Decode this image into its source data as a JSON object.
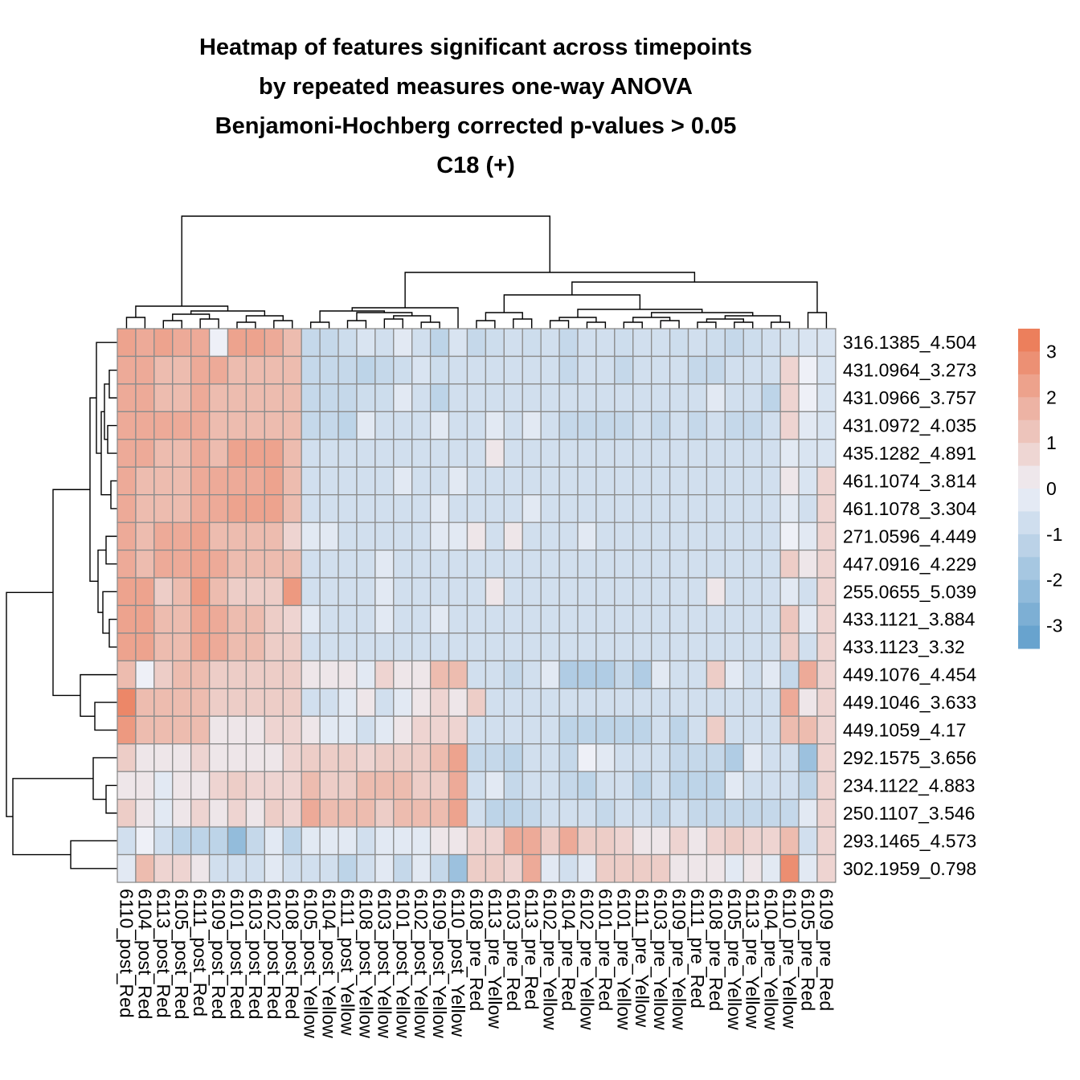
{
  "chart_data": {
    "type": "heatmap",
    "title_lines": [
      "Heatmap of features significant across timepoints",
      "by repeated measures one-way ANOVA",
      "Benjamoni-Hochberg corrected p-values > 0.05",
      "C18 (+)"
    ],
    "rows": [
      "316.1385_4.504",
      "431.0964_3.273",
      "431.0966_3.757",
      "431.0972_4.035",
      "435.1282_4.891",
      "461.1074_3.814",
      "461.1078_3.304",
      "271.0596_4.449",
      "447.0916_4.229",
      "255.0655_5.039",
      "433.1121_3.884",
      "433.1123_3.32",
      "449.1076_4.454",
      "449.1046_3.633",
      "449.1059_4.17",
      "292.1575_3.656",
      "234.1122_4.883",
      "250.1107_3.546",
      "293.1465_4.573",
      "302.1959_0.798"
    ],
    "columns": [
      "6110_post_Red",
      "6104_post_Red",
      "6113_post_Red",
      "6105_post_Red",
      "6111_post_Red",
      "6109_post_Red",
      "6101_post_Red",
      "6103_post_Red",
      "6102_post_Red",
      "6108_post_Red",
      "6105_post_Yellow",
      "6104_post_Yellow",
      "6111_post_Yellow",
      "6108_post_Yellow",
      "6103_post_Yellow",
      "6101_post_Yellow",
      "6102_post_Yellow",
      "6109_post_Yellow",
      "6110_post_Yellow",
      "6108_pre_Red",
      "6113_pre_Yellow",
      "6103_pre_Red",
      "6113_pre_Red",
      "6102_pre_Yellow",
      "6104_pre_Red",
      "6102_pre_Yellow",
      "6101_pre_Red",
      "6101_pre_Yellow",
      "6111_pre_Yellow",
      "6103_pre_Yellow",
      "6109_pre_Yellow",
      "6111_pre_Red",
      "6108_pre_Red",
      "6105_pre_Yellow",
      "6113_pre_Yellow",
      "6104_pre_Yellow",
      "6110_pre_Yellow",
      "6105_pre_Red",
      "6109_pre_Red"
    ],
    "values": [
      [
        2.2,
        2.0,
        2.2,
        2.0,
        2.0,
        0.0,
        2.2,
        2.2,
        2.0,
        1.5,
        -1.0,
        -1.0,
        -0.8,
        -0.5,
        -0.7,
        -0.3,
        -0.7,
        -1.2,
        -0.5,
        -1.0,
        -0.8,
        -0.7,
        -0.8,
        -0.7,
        -1.0,
        -0.7,
        -0.7,
        -0.8,
        -0.7,
        -0.7,
        -0.8,
        -0.7,
        -0.8,
        -1.0,
        -0.8,
        -0.7,
        -0.6,
        -0.5,
        -0.5
      ],
      [
        2.0,
        2.0,
        1.5,
        1.5,
        2.0,
        2.0,
        1.5,
        1.5,
        1.5,
        1.5,
        -1.0,
        -1.0,
        -1.0,
        -1.2,
        -1.0,
        -0.8,
        -0.5,
        -0.8,
        -0.7,
        -0.7,
        -0.7,
        -0.7,
        -0.7,
        -0.7,
        -1.0,
        -0.7,
        -0.7,
        -1.0,
        -0.7,
        -0.7,
        -0.7,
        -1.0,
        -1.0,
        -0.7,
        -0.7,
        -0.7,
        0.8,
        0.0,
        -0.5
      ],
      [
        2.0,
        2.0,
        1.5,
        1.5,
        2.0,
        1.5,
        1.5,
        1.5,
        1.5,
        1.5,
        -1.0,
        -1.0,
        -1.0,
        -0.8,
        -0.8,
        -0.3,
        -0.7,
        -1.2,
        -0.7,
        -0.7,
        -0.7,
        -0.7,
        -0.7,
        -0.7,
        -0.7,
        -0.7,
        -0.7,
        -0.7,
        -0.7,
        -0.7,
        -0.7,
        -0.7,
        -0.3,
        -0.7,
        -0.7,
        -1.2,
        0.8,
        0.0,
        -0.5
      ],
      [
        2.0,
        2.0,
        2.0,
        2.0,
        2.0,
        1.5,
        1.5,
        1.5,
        1.5,
        1.5,
        -1.0,
        -1.0,
        -1.2,
        -0.3,
        -0.7,
        -0.7,
        -0.7,
        -0.3,
        -0.7,
        -0.7,
        -0.3,
        -0.7,
        -0.3,
        -0.7,
        -1.0,
        -1.0,
        -1.0,
        -1.0,
        -0.7,
        -1.0,
        -0.7,
        -1.0,
        -0.7,
        -1.0,
        -1.0,
        -0.7,
        0.8,
        -0.3,
        -0.5
      ],
      [
        2.0,
        2.0,
        1.5,
        1.5,
        2.0,
        1.5,
        2.2,
        2.2,
        2.2,
        1.5,
        -0.7,
        -0.7,
        -0.7,
        -0.7,
        -0.7,
        -0.7,
        -0.7,
        -0.7,
        -0.7,
        -0.7,
        0.3,
        -0.7,
        -0.7,
        -0.7,
        -0.7,
        -0.7,
        -0.7,
        -0.7,
        -0.7,
        -0.7,
        -0.7,
        -0.7,
        -0.7,
        -0.7,
        -0.7,
        -0.7,
        -0.3,
        -0.5,
        -0.5
      ],
      [
        2.0,
        1.5,
        1.5,
        1.5,
        2.0,
        2.0,
        2.0,
        2.0,
        2.2,
        1.5,
        -0.7,
        -0.7,
        -0.7,
        -0.7,
        -0.7,
        -0.3,
        -0.7,
        -0.7,
        -0.3,
        -0.7,
        -0.7,
        -0.7,
        -0.7,
        -0.7,
        -0.7,
        -0.7,
        -0.7,
        -0.7,
        -0.7,
        -0.7,
        -0.7,
        -0.7,
        -0.7,
        -0.7,
        -0.7,
        -0.7,
        0.3,
        -0.5,
        0.8
      ],
      [
        2.0,
        1.5,
        1.5,
        1.5,
        2.0,
        2.0,
        2.2,
        2.2,
        2.2,
        1.5,
        -0.7,
        -0.7,
        -0.7,
        -0.7,
        -0.7,
        -0.7,
        -0.7,
        -0.3,
        -0.7,
        -0.7,
        -0.7,
        -0.7,
        -0.3,
        -0.7,
        -0.7,
        -0.7,
        -0.7,
        -0.7,
        -0.7,
        -0.7,
        -0.7,
        -0.7,
        -0.7,
        -0.7,
        -0.7,
        -0.7,
        -0.3,
        -0.7,
        0.8
      ],
      [
        2.0,
        1.5,
        2.0,
        2.0,
        2.2,
        1.5,
        1.5,
        1.5,
        1.5,
        0.8,
        -0.3,
        -0.3,
        -0.7,
        -0.7,
        -0.7,
        -0.7,
        -0.7,
        -0.3,
        -0.3,
        0.3,
        -0.7,
        0.3,
        -0.7,
        -0.7,
        -0.7,
        -0.3,
        -0.7,
        -0.7,
        -0.7,
        -0.7,
        -0.7,
        -0.7,
        -0.7,
        -0.7,
        -0.7,
        -0.7,
        0.0,
        -0.3,
        0.8
      ],
      [
        2.0,
        1.5,
        2.0,
        2.0,
        2.2,
        2.0,
        1.5,
        1.5,
        1.5,
        1.5,
        -0.7,
        -0.7,
        -0.7,
        -0.7,
        -0.3,
        -0.7,
        -0.7,
        -0.7,
        -0.7,
        -0.7,
        -0.7,
        -0.7,
        -0.7,
        -0.7,
        -0.7,
        -0.7,
        -0.7,
        -0.7,
        -0.7,
        -0.7,
        -0.7,
        -0.7,
        -0.7,
        -0.7,
        -0.7,
        -0.7,
        1.0,
        0.3,
        0.8
      ],
      [
        2.2,
        2.2,
        1.0,
        1.5,
        2.5,
        1.5,
        1.0,
        1.0,
        1.0,
        2.5,
        -0.7,
        -0.7,
        -0.7,
        -0.7,
        -0.3,
        -0.7,
        -0.7,
        -0.7,
        -0.7,
        -0.7,
        0.3,
        -0.7,
        -0.7,
        -0.7,
        -0.7,
        -0.7,
        -0.7,
        -0.7,
        -0.7,
        -0.7,
        -0.7,
        -0.7,
        0.3,
        -0.7,
        -0.7,
        -0.7,
        -0.3,
        -0.7,
        0.8
      ],
      [
        2.2,
        2.2,
        1.5,
        1.5,
        2.2,
        2.0,
        1.5,
        1.5,
        1.0,
        0.8,
        -0.3,
        -0.7,
        -0.7,
        -0.7,
        -0.3,
        -0.7,
        -0.7,
        -0.3,
        -0.7,
        -0.7,
        -0.7,
        -0.7,
        -0.7,
        -0.7,
        -0.7,
        -0.7,
        -0.7,
        -0.7,
        -0.7,
        -0.7,
        -0.7,
        -0.7,
        -0.7,
        -0.7,
        -0.7,
        -0.7,
        1.2,
        -0.3,
        0.8
      ],
      [
        2.2,
        2.2,
        1.5,
        1.5,
        2.2,
        2.0,
        1.5,
        1.5,
        1.0,
        1.0,
        -0.7,
        -0.7,
        -0.7,
        -0.7,
        -0.7,
        -0.7,
        -0.7,
        -0.7,
        -0.7,
        -0.7,
        -0.7,
        -0.7,
        -0.7,
        -0.7,
        -0.7,
        -0.7,
        -0.7,
        -0.7,
        -0.7,
        -0.7,
        -0.7,
        -0.7,
        -0.7,
        -0.7,
        -0.7,
        -0.7,
        1.0,
        -0.7,
        0.8
      ],
      [
        1.5,
        0.0,
        1.0,
        1.5,
        1.5,
        1.0,
        1.0,
        1.0,
        1.0,
        1.0,
        0.3,
        0.3,
        0.3,
        -0.3,
        0.8,
        0.3,
        0.3,
        1.5,
        1.5,
        -0.7,
        -0.7,
        -1.0,
        -0.7,
        -0.3,
        -1.5,
        -1.5,
        -1.5,
        -1.0,
        -1.5,
        -0.3,
        -0.7,
        -0.7,
        1.0,
        -0.3,
        -0.7,
        -0.3,
        -1.0,
        2.0,
        0.8
      ],
      [
        3.0,
        1.5,
        1.5,
        1.5,
        1.5,
        1.0,
        1.0,
        1.0,
        1.0,
        1.0,
        -0.7,
        -0.7,
        -0.3,
        0.3,
        -0.7,
        -0.3,
        0.3,
        0.8,
        0.3,
        1.0,
        -0.7,
        -0.7,
        -0.7,
        -0.7,
        -0.7,
        -0.7,
        -0.7,
        -0.7,
        -0.7,
        -0.7,
        -0.7,
        -0.7,
        -0.7,
        -0.7,
        -0.7,
        -0.7,
        2.0,
        0.3,
        0.8
      ],
      [
        2.5,
        1.5,
        1.5,
        1.5,
        1.5,
        0.3,
        0.3,
        0.3,
        0.8,
        0.8,
        0.3,
        -0.3,
        -0.3,
        -0.7,
        -0.3,
        0.3,
        0.8,
        0.8,
        0.8,
        -0.7,
        -0.7,
        -0.7,
        -0.7,
        -0.7,
        -1.2,
        -1.2,
        -1.2,
        -1.2,
        -1.2,
        -0.7,
        -1.2,
        -0.7,
        1.0,
        -0.7,
        -0.7,
        -0.7,
        1.5,
        1.5,
        0.8
      ],
      [
        1.0,
        0.3,
        0.3,
        0.3,
        0.8,
        0.3,
        0.3,
        0.3,
        0.3,
        0.8,
        1.0,
        1.0,
        1.0,
        0.8,
        1.0,
        1.0,
        1.0,
        1.5,
        2.2,
        -1.0,
        -1.0,
        -1.2,
        -0.7,
        -0.7,
        -1.0,
        0.0,
        -0.3,
        -0.7,
        -0.7,
        -0.7,
        -1.0,
        -1.0,
        -1.0,
        -1.5,
        -0.3,
        -0.7,
        -0.7,
        -2.0,
        0.8
      ],
      [
        0.3,
        0.3,
        -0.3,
        0.3,
        0.3,
        0.8,
        1.0,
        0.8,
        0.8,
        0.8,
        1.5,
        1.0,
        1.0,
        1.5,
        1.5,
        1.5,
        1.0,
        1.0,
        2.0,
        -0.7,
        -0.3,
        -1.0,
        -0.7,
        -0.7,
        -1.0,
        -1.2,
        -0.7,
        -0.7,
        -1.2,
        -0.7,
        -1.2,
        -1.2,
        -1.2,
        -0.3,
        -0.7,
        -0.7,
        -0.7,
        -1.2,
        0.8
      ],
      [
        1.0,
        0.3,
        -0.3,
        0.3,
        0.8,
        0.3,
        0.8,
        0.3,
        1.0,
        0.8,
        2.0,
        1.5,
        1.5,
        1.5,
        1.0,
        1.5,
        1.5,
        1.5,
        2.2,
        -0.7,
        -1.2,
        -1.2,
        -1.0,
        -0.7,
        -0.7,
        -0.7,
        -1.0,
        -0.7,
        -0.7,
        -1.0,
        -0.7,
        -1.0,
        -1.0,
        -1.0,
        -1.0,
        -1.0,
        -1.0,
        -0.3,
        0.8
      ],
      [
        -0.7,
        0.0,
        -0.7,
        -1.2,
        -1.2,
        -1.2,
        -2.2,
        -1.0,
        -0.3,
        -1.2,
        -0.3,
        -0.3,
        -0.3,
        -0.7,
        -0.3,
        -0.3,
        -0.3,
        0.3,
        0.3,
        0.8,
        0.8,
        2.0,
        2.0,
        1.0,
        2.0,
        1.0,
        1.0,
        0.8,
        0.3,
        0.3,
        0.8,
        0.3,
        0.8,
        1.0,
        0.8,
        0.8,
        1.5,
        -0.7,
        0.8
      ],
      [
        -0.3,
        1.5,
        0.8,
        0.8,
        0.3,
        -0.7,
        -0.7,
        -0.7,
        -0.3,
        -0.7,
        -0.7,
        -0.7,
        -1.2,
        -0.7,
        -0.3,
        -1.0,
        -0.3,
        -1.0,
        -2.0,
        1.0,
        1.0,
        0.8,
        2.0,
        -0.3,
        -0.7,
        -0.3,
        1.0,
        1.0,
        1.0,
        1.0,
        0.3,
        0.3,
        0.3,
        -0.3,
        0.3,
        -0.3,
        2.8,
        -0.3,
        0.8
      ]
    ],
    "legend": {
      "range": [
        -3.5,
        3.5
      ],
      "ticks": [
        3,
        2,
        1,
        0,
        -1,
        -2,
        -3
      ],
      "tick_labels": [
        "3",
        "2",
        "1",
        "0",
        "-1",
        "-2",
        "-3"
      ],
      "position": "right"
    },
    "colors": {
      "low": "#5e9dcb",
      "mid": "#eef0f7",
      "high": "#ec7650",
      "cell_border": "#8c8c8c"
    }
  }
}
